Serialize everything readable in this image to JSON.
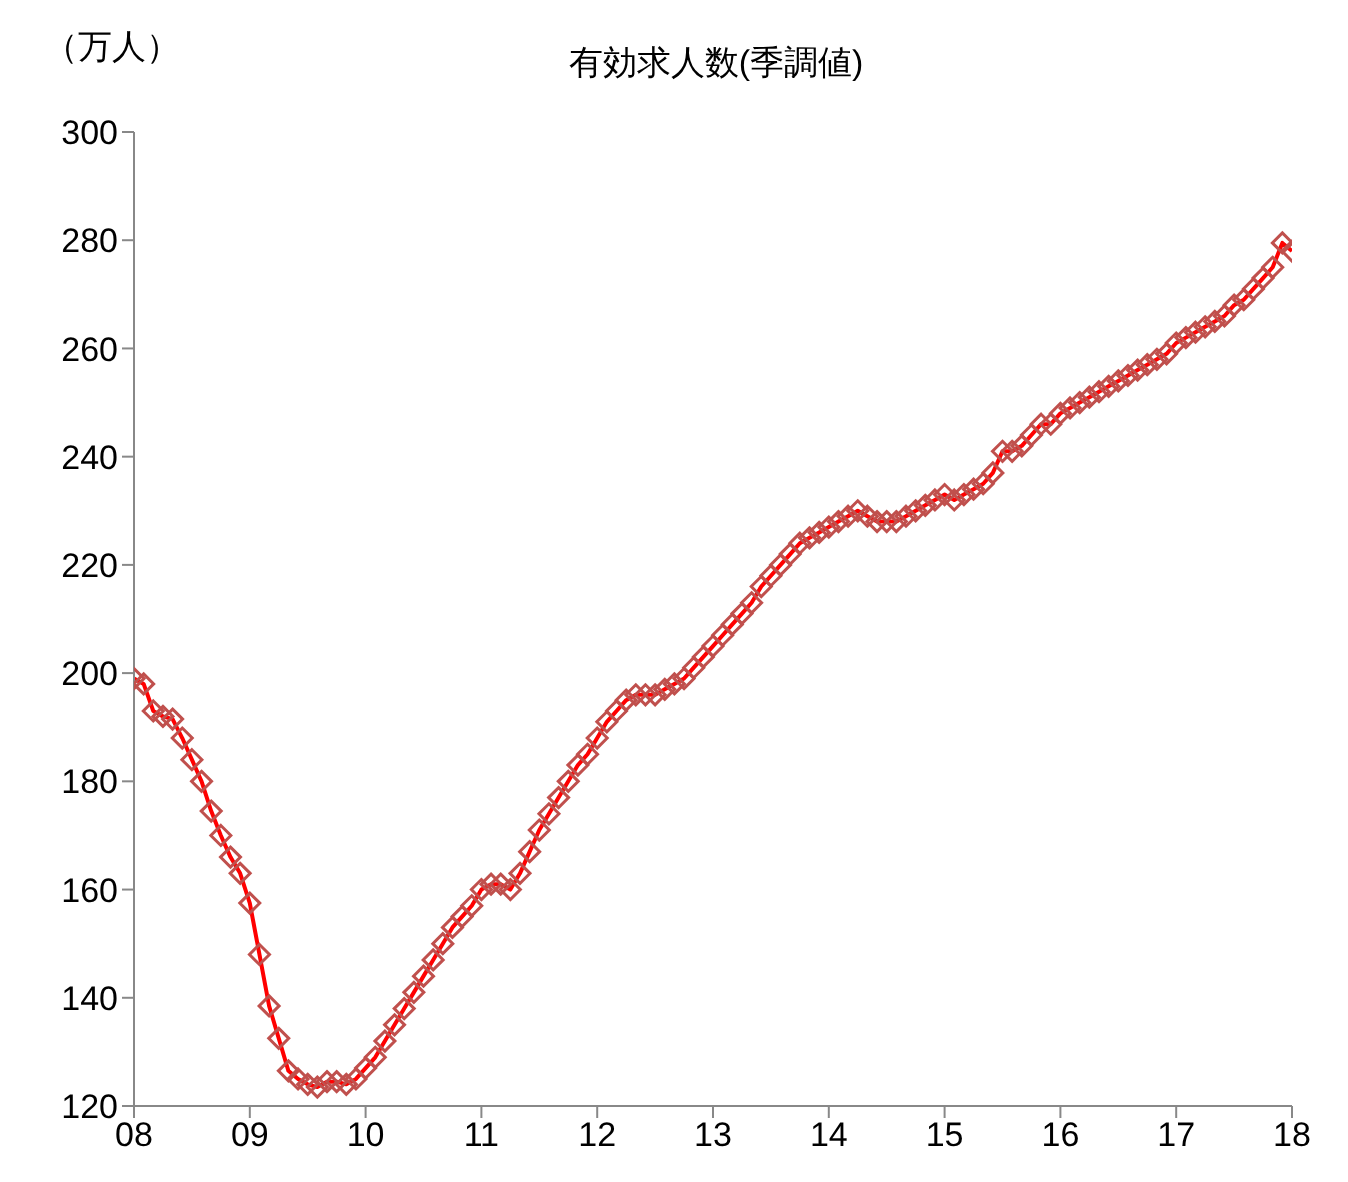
{
  "chart_data": {
    "type": "line",
    "title": "有効求人数(季調値)",
    "ylabel": "（万人）",
    "x": [
      "2008-01",
      "2008-02",
      "2008-03",
      "2008-04",
      "2008-05",
      "2008-06",
      "2008-07",
      "2008-08",
      "2008-09",
      "2008-10",
      "2008-11",
      "2008-12",
      "2009-01",
      "2009-02",
      "2009-03",
      "2009-04",
      "2009-05",
      "2009-06",
      "2009-07",
      "2009-08",
      "2009-09",
      "2009-10",
      "2009-11",
      "2009-12",
      "2010-01",
      "2010-02",
      "2010-03",
      "2010-04",
      "2010-05",
      "2010-06",
      "2010-07",
      "2010-08",
      "2010-09",
      "2010-10",
      "2010-11",
      "2010-12",
      "2011-01",
      "2011-02",
      "2011-03",
      "2011-04",
      "2011-05",
      "2011-06",
      "2011-07",
      "2011-08",
      "2011-09",
      "2011-10",
      "2011-11",
      "2011-12",
      "2012-01",
      "2012-02",
      "2012-03",
      "2012-04",
      "2012-05",
      "2012-06",
      "2012-07",
      "2012-08",
      "2012-09",
      "2012-10",
      "2012-11",
      "2012-12",
      "2013-01",
      "2013-02",
      "2013-03",
      "2013-04",
      "2013-05",
      "2013-06",
      "2013-07",
      "2013-08",
      "2013-09",
      "2013-10",
      "2013-11",
      "2013-12",
      "2014-01",
      "2014-02",
      "2014-03",
      "2014-04",
      "2014-05",
      "2014-06",
      "2014-07",
      "2014-08",
      "2014-09",
      "2014-10",
      "2014-11",
      "2014-12",
      "2015-01",
      "2015-02",
      "2015-03",
      "2015-04",
      "2015-05",
      "2015-06",
      "2015-07",
      "2015-08",
      "2015-09",
      "2015-10",
      "2015-11",
      "2015-12",
      "2016-01",
      "2016-02",
      "2016-03",
      "2016-04",
      "2016-05",
      "2016-06",
      "2016-07",
      "2016-08",
      "2016-09",
      "2016-10",
      "2016-11",
      "2016-12",
      "2017-01",
      "2017-02",
      "2017-03",
      "2017-04",
      "2017-05",
      "2017-06",
      "2017-07",
      "2017-08",
      "2017-09",
      "2017-10",
      "2017-11",
      "2017-12",
      "2018-01"
    ],
    "series": [
      {
        "color": "#ff0000",
        "values": [
          199,
          198,
          193,
          192,
          191.5,
          188,
          184,
          180,
          174.5,
          170,
          166,
          163,
          157.5,
          148,
          138.5,
          132.5,
          126.5,
          125,
          124,
          123.5,
          124.5,
          124.5,
          124,
          125,
          127,
          129,
          132,
          135,
          138,
          141,
          144,
          147,
          150,
          153,
          155,
          157,
          160,
          161,
          161,
          160,
          163,
          167,
          171,
          174,
          177,
          180,
          183,
          185,
          188,
          191,
          193,
          195,
          196,
          196,
          196,
          197,
          198,
          199,
          201,
          203,
          205,
          207,
          209,
          211,
          213,
          216,
          218,
          220,
          222,
          224,
          225,
          226,
          227,
          228,
          229,
          230,
          229,
          228,
          228,
          228,
          229,
          230,
          231,
          232,
          233,
          232,
          233,
          234,
          235,
          237,
          241,
          241,
          242,
          244,
          246,
          246,
          248,
          249,
          250,
          251,
          252,
          253,
          254,
          255,
          256,
          257,
          258,
          259,
          261,
          262,
          263,
          264,
          265,
          266,
          268,
          269,
          271,
          273,
          275,
          279.5,
          278
        ]
      }
    ],
    "marker": "diamond",
    "grid": false,
    "legend": false,
    "xlim": [
      "2008-01",
      "2018-01"
    ],
    "xticks": [
      {
        "value": "2008-01",
        "label": "08"
      },
      {
        "value": "2009-01",
        "label": "09"
      },
      {
        "value": "2010-01",
        "label": "10"
      },
      {
        "value": "2011-01",
        "label": "11"
      },
      {
        "value": "2012-01",
        "label": "12"
      },
      {
        "value": "2013-01",
        "label": "13"
      },
      {
        "value": "2014-01",
        "label": "14"
      },
      {
        "value": "2015-01",
        "label": "15"
      },
      {
        "value": "2016-01",
        "label": "16"
      },
      {
        "value": "2017-01",
        "label": "17"
      },
      {
        "value": "2018-01",
        "label": "18"
      }
    ],
    "ylim": [
      120,
      300
    ],
    "yticks": [
      120,
      140,
      160,
      180,
      200,
      220,
      240,
      260,
      280,
      300
    ]
  }
}
